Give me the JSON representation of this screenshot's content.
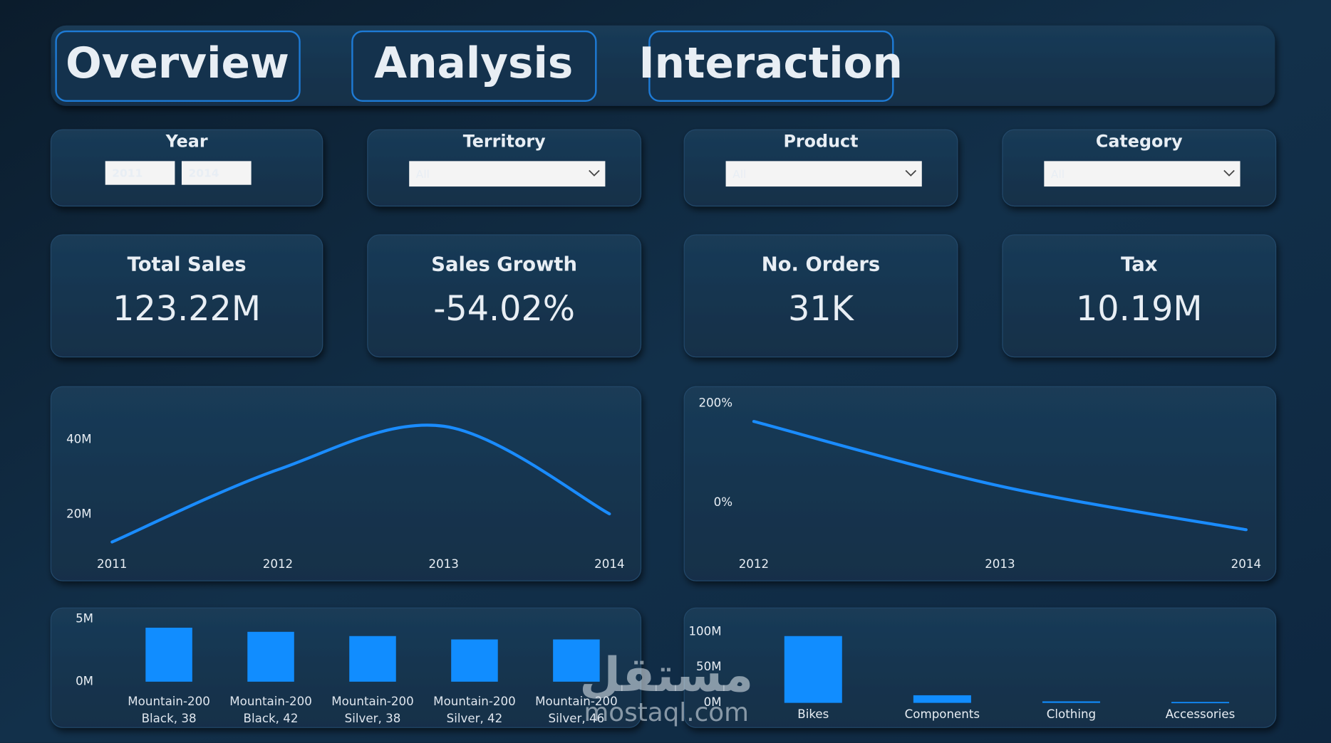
{
  "tabs": [
    "Overview",
    "Analysis",
    "Interaction"
  ],
  "filters": [
    {
      "label": "Year",
      "values": [
        "2011",
        "2014"
      ]
    },
    {
      "label": "Territory",
      "value": "All"
    },
    {
      "label": "Product",
      "value": "All"
    },
    {
      "label": "Category",
      "value": "All"
    }
  ],
  "kpis": [
    {
      "label": "Total Sales",
      "value": "123.22M"
    },
    {
      "label": "Sales Growth",
      "value": "-54.02%"
    },
    {
      "label": "No. Orders",
      "value": "31K"
    },
    {
      "label": "Tax",
      "value": "10.19M"
    }
  ],
  "chart_data": [
    {
      "type": "line",
      "categories": [
        "2011",
        "2012",
        "2013",
        "2014"
      ],
      "values": [
        12700000,
        32000000,
        43600000,
        20200000
      ],
      "color": "#1a8cff",
      "ylim": [
        8000000,
        51000000
      ],
      "yticks": [
        {
          "value": 20000000,
          "label": "20M"
        },
        {
          "value": 40000000,
          "label": "40M"
        }
      ]
    },
    {
      "type": "line",
      "categories": [
        "2012",
        "2013",
        "2014"
      ],
      "values": [
        164,
        34,
        -54
      ],
      "color": "#1a8cff",
      "ylim": [
        -97,
        217
      ],
      "yticks": [
        {
          "value": 0,
          "label": "0%"
        },
        {
          "value": 200,
          "label": "200%"
        }
      ]
    },
    {
      "type": "bar",
      "categories": [
        "Mountain-200 Black, 38",
        "Mountain-200 Black, 42",
        "Mountain-200 Silver, 38",
        "Mountain-200 Silver, 42",
        "Mountain-200 Silver, 46"
      ],
      "values": [
        4320000,
        3990000,
        3650000,
        3380000,
        3380000
      ],
      "color": "#118dff",
      "ylim": [
        0,
        5700000
      ],
      "yticks": [
        {
          "value": 0,
          "label": "0M"
        },
        {
          "value": 5000000,
          "label": "5M"
        }
      ]
    },
    {
      "type": "bar",
      "categories": [
        "Bikes",
        "Components",
        "Clothing",
        "Accessories"
      ],
      "values": [
        94000000,
        10700000,
        2100000,
        1300000
      ],
      "color": "#118dff",
      "ylim": [
        0,
        105000000
      ],
      "yticks": [
        {
          "value": 0,
          "label": "0M"
        },
        {
          "value": 50000000,
          "label": "50M"
        },
        {
          "value": 100000000,
          "label": "100M"
        }
      ]
    }
  ],
  "watermark": [
    "مستقل",
    "mostaql.com"
  ]
}
